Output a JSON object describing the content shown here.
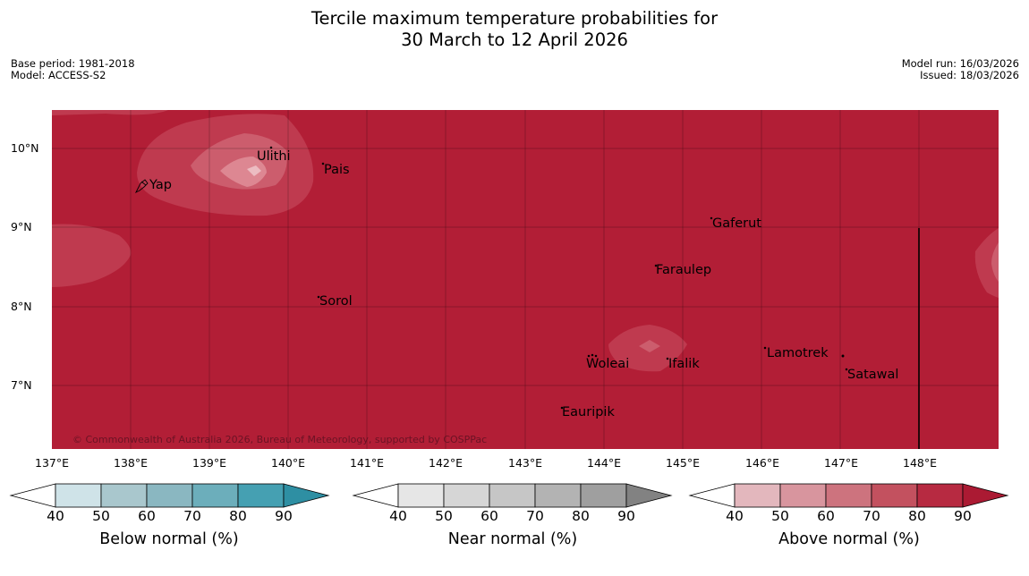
{
  "title": {
    "line1": "Tercile maximum temperature probabilities for",
    "line2": "30 March to 12 April 2026"
  },
  "meta_left": {
    "base_period": "Base period: 1981-2018",
    "model": "Model: ACCESS-S2"
  },
  "meta_right": {
    "model_run": "Model run: 16/03/2026",
    "issued": "Issued: 18/03/2026"
  },
  "axes": {
    "lat_labels": [
      "10°N",
      "9°N",
      "8°N",
      "7°N"
    ],
    "lon_labels": [
      "137°E",
      "138°E",
      "139°E",
      "140°E",
      "141°E",
      "142°E",
      "143°E",
      "144°E",
      "145°E",
      "146°E",
      "147°E",
      "148°E"
    ]
  },
  "places": {
    "ulithi": "Ulithi",
    "pais": "Pais",
    "yap": "Yap",
    "gaferut": "Gaferut",
    "faraulep": "Faraulep",
    "sorol": "Sorol",
    "lamotrek": "Lamotrek",
    "woleai": "Woleai",
    "ifalik": "Ifalik",
    "satawal": "Satawal",
    "eauripik": "Eauripik"
  },
  "copyright": "© Commonwealth of Australia 2026, Bureau of Meteorology, supported by COSPPac",
  "colorbars": {
    "ticks": [
      "40",
      "50",
      "60",
      "70",
      "80",
      "90"
    ],
    "below": {
      "title": "Below normal (%)",
      "colors": [
        "#ffffff",
        "#cfe3e8",
        "#a9c7cd",
        "#8ab7c1",
        "#6caebb",
        "#45a0b2",
        "#2e8fa3"
      ]
    },
    "near": {
      "title": "Near normal (%)",
      "colors": [
        "#ffffff",
        "#e6e6e6",
        "#d6d6d6",
        "#c6c6c6",
        "#b3b3b3",
        "#9f9f9f",
        "#828282"
      ]
    },
    "above": {
      "title": "Above normal (%)",
      "colors": [
        "#ffffff",
        "#e3b7bd",
        "#d8959e",
        "#cd737e",
        "#c3515f",
        "#b72a41",
        "#ab1a33"
      ]
    }
  },
  "map_colors": {
    "base": "#b21e36",
    "level1": "#bf3a4f",
    "level2": "#cc5d6d",
    "level3": "#dd8792"
  }
}
